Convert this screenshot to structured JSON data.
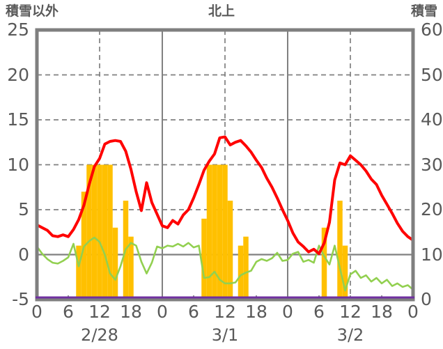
{
  "header": {
    "left_axis_label": "積雪以外",
    "title": "北上",
    "right_axis_label": "積雪"
  },
  "colors": {
    "red_line": "#ff0000",
    "green_line": "#92d050",
    "orange_bars": "#ffc000",
    "purple_line": "#7030a0",
    "grid": "#808080",
    "frame": "#7f7f7f",
    "text": "#595959",
    "background": "#ffffff"
  },
  "chart_data": {
    "type": "line",
    "title": "北上",
    "left_axis": {
      "label": "積雪以外",
      "min": -5,
      "max": 25,
      "ticks": [
        25,
        20,
        15,
        10,
        5,
        0,
        -5
      ]
    },
    "right_axis": {
      "label": "積雪",
      "min": 0,
      "max": 60,
      "ticks": [
        60,
        50,
        40,
        30,
        20,
        10,
        0
      ]
    },
    "x_axis": {
      "total_hours": 72,
      "tick_interval_hours": 6,
      "tick_labels": [
        "0",
        "6",
        "12",
        "18",
        "0",
        "6",
        "12",
        "18",
        "0",
        "6",
        "12",
        "18",
        "0"
      ],
      "date_labels": [
        {
          "label": "2/28",
          "hour": 12
        },
        {
          "label": "3/1",
          "hour": 36
        },
        {
          "label": "3/2",
          "hour": 60
        }
      ]
    },
    "gridlines": {
      "horizontal_dashed_left_values": [
        20,
        15,
        10,
        5
      ],
      "horizontal_solid_left_values": [
        0
      ],
      "vertical_dashed_hours": [
        12,
        36,
        60
      ],
      "vertical_solid_hours": [
        24,
        48
      ]
    },
    "series": [
      {
        "name": "orange_bars",
        "type": "bar",
        "axis": "left",
        "color": "#ffc000",
        "bars": [
          {
            "hour": 8,
            "value": 1
          },
          {
            "hour": 9,
            "value": 7
          },
          {
            "hour": 10,
            "value": 10
          },
          {
            "hour": 11,
            "value": 10
          },
          {
            "hour": 12,
            "value": 10
          },
          {
            "hour": 13,
            "value": 10
          },
          {
            "hour": 14,
            "value": 10
          },
          {
            "hour": 15,
            "value": 3
          },
          {
            "hour": 17,
            "value": 6
          },
          {
            "hour": 18,
            "value": 2
          },
          {
            "hour": 32,
            "value": 4
          },
          {
            "hour": 33,
            "value": 10
          },
          {
            "hour": 34,
            "value": 10
          },
          {
            "hour": 35,
            "value": 10
          },
          {
            "hour": 36,
            "value": 10
          },
          {
            "hour": 37,
            "value": 6
          },
          {
            "hour": 39,
            "value": 1
          },
          {
            "hour": 40,
            "value": 2
          },
          {
            "hour": 55,
            "value": 3
          },
          {
            "hour": 58,
            "value": 6
          },
          {
            "hour": 59,
            "value": 1
          }
        ]
      },
      {
        "name": "green_line",
        "type": "line",
        "axis": "left",
        "color": "#92d050",
        "stroke_width": 2.6,
        "values": [
          0.9,
          0.1,
          -0.5,
          -0.9,
          -1,
          -0.7,
          -0.3,
          1.2,
          -1.3,
          0.9,
          1.5,
          1.9,
          1.4,
          0,
          -2.1,
          -2.8,
          -1.3,
          0.6,
          1.3,
          1,
          -0.8,
          -2.1,
          -0.9,
          0.9,
          0.7,
          1,
          0.9,
          1.2,
          0.9,
          1.3,
          0.8,
          1,
          -2.6,
          -2.5,
          -1.9,
          -2.8,
          -3.2,
          -3.2,
          -3.1,
          -2.3,
          -2,
          -1.8,
          -0.8,
          -0.5,
          -0.7,
          -0.4,
          0.2,
          -0.7,
          -0.6,
          0.1,
          0.3,
          -0.8,
          -0.6,
          -0.9,
          1,
          -0.2,
          -1.1,
          1,
          -1.5,
          -4,
          -2.2,
          -1.8,
          -2.6,
          -2.3,
          -3,
          -2.6,
          -3.2,
          -2.8,
          -3.5,
          -3.2,
          -3.6,
          -3.4,
          -3.9
        ]
      },
      {
        "name": "red_line",
        "type": "line",
        "axis": "left",
        "color": "#ff0000",
        "stroke_width": 4,
        "values": [
          3.3,
          3,
          2.7,
          2.1,
          2,
          2.2,
          2,
          2.8,
          3.9,
          5.5,
          7.8,
          9.8,
          10.7,
          12.3,
          12.6,
          12.7,
          12.6,
          11.5,
          9.5,
          7,
          4.9,
          8,
          5.8,
          4.5,
          3.2,
          3,
          3.8,
          3.4,
          4.4,
          5,
          6.3,
          7.8,
          9.4,
          10.4,
          11.2,
          13,
          13.1,
          12.2,
          12.5,
          12.7,
          12.1,
          11.4,
          10.5,
          9.7,
          8.5,
          7.5,
          6.3,
          5,
          3.8,
          2.4,
          1.4,
          0.9,
          0.3,
          0.6,
          0.1,
          1.3,
          3.6,
          8.3,
          10.2,
          10,
          11,
          10.5,
          10,
          9.3,
          8.4,
          7.8,
          6.6,
          5.6,
          4.6,
          3.5,
          2.6,
          2,
          1.6
        ]
      },
      {
        "name": "purple_line",
        "type": "line",
        "axis": "right",
        "color": "#7030a0",
        "stroke_width": 3,
        "constant_value": 0
      }
    ]
  }
}
